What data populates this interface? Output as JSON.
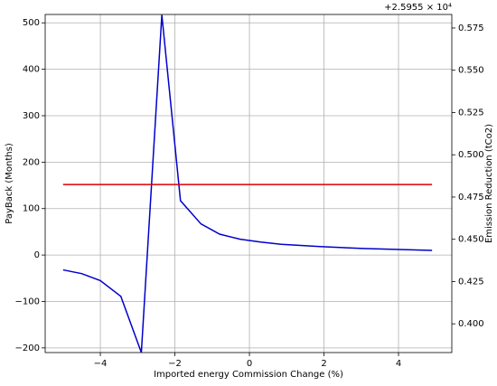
{
  "chart_data": {
    "type": "line",
    "xlabel": "Imported energy Commission Change (%)",
    "ylabel": "PayBack (Months)",
    "ylabel_color": "#0000cc",
    "y2label": "Emission Reduction (tCo2)",
    "y2label_color": "#a0400f",
    "y2_offset_label": "+2.5955 × 10⁴",
    "x": [
      -5,
      -4.5,
      -4,
      -3.45,
      -2.9,
      -2.35,
      -1.85,
      -1.3,
      -0.8,
      -0.25,
      0.3,
      0.85,
      1.95,
      3.05,
      4.9
    ],
    "series": [
      {
        "name": "PayBack (Months)",
        "color": "#0000cc",
        "axis": "y",
        "values": [
          -32,
          -40,
          -55,
          -89,
          -210,
          517,
          117,
          67,
          45,
          34,
          28,
          23,
          18,
          14,
          10
        ]
      },
      {
        "name": "Emission Reduction (tCo2)",
        "color": "#dd0000",
        "axis": "y2",
        "values": [
          0.4824,
          0.4824,
          0.4824,
          0.4824,
          0.4824,
          0.4824,
          0.4824,
          0.4824,
          0.4824,
          0.4824,
          0.4824,
          0.4824,
          0.4824,
          0.4824,
          0.4824
        ]
      }
    ],
    "xlim": [
      -5.48,
      5.43
    ],
    "xticks": [
      {
        "value": -4,
        "label": "−4"
      },
      {
        "value": -2,
        "label": "−2"
      },
      0,
      2,
      4
    ],
    "ylim": [
      -210,
      518
    ],
    "yticks": [
      {
        "value": -200,
        "label": "−200"
      },
      {
        "value": -100,
        "label": "−100"
      },
      0,
      100,
      200,
      300,
      400,
      500
    ],
    "y2lim": [
      0.383,
      0.583
    ],
    "y2ticks": [
      {
        "value": 0.4,
        "label": "0.400"
      },
      {
        "value": 0.425,
        "label": "0.425"
      },
      {
        "value": 0.45,
        "label": "0.450"
      },
      {
        "value": 0.475,
        "label": "0.475"
      },
      {
        "value": 0.5,
        "label": "0.500"
      },
      {
        "value": 0.525,
        "label": "0.525"
      },
      {
        "value": 0.55,
        "label": "0.550"
      },
      {
        "value": 0.575,
        "label": "0.575"
      }
    ],
    "grid": true
  }
}
